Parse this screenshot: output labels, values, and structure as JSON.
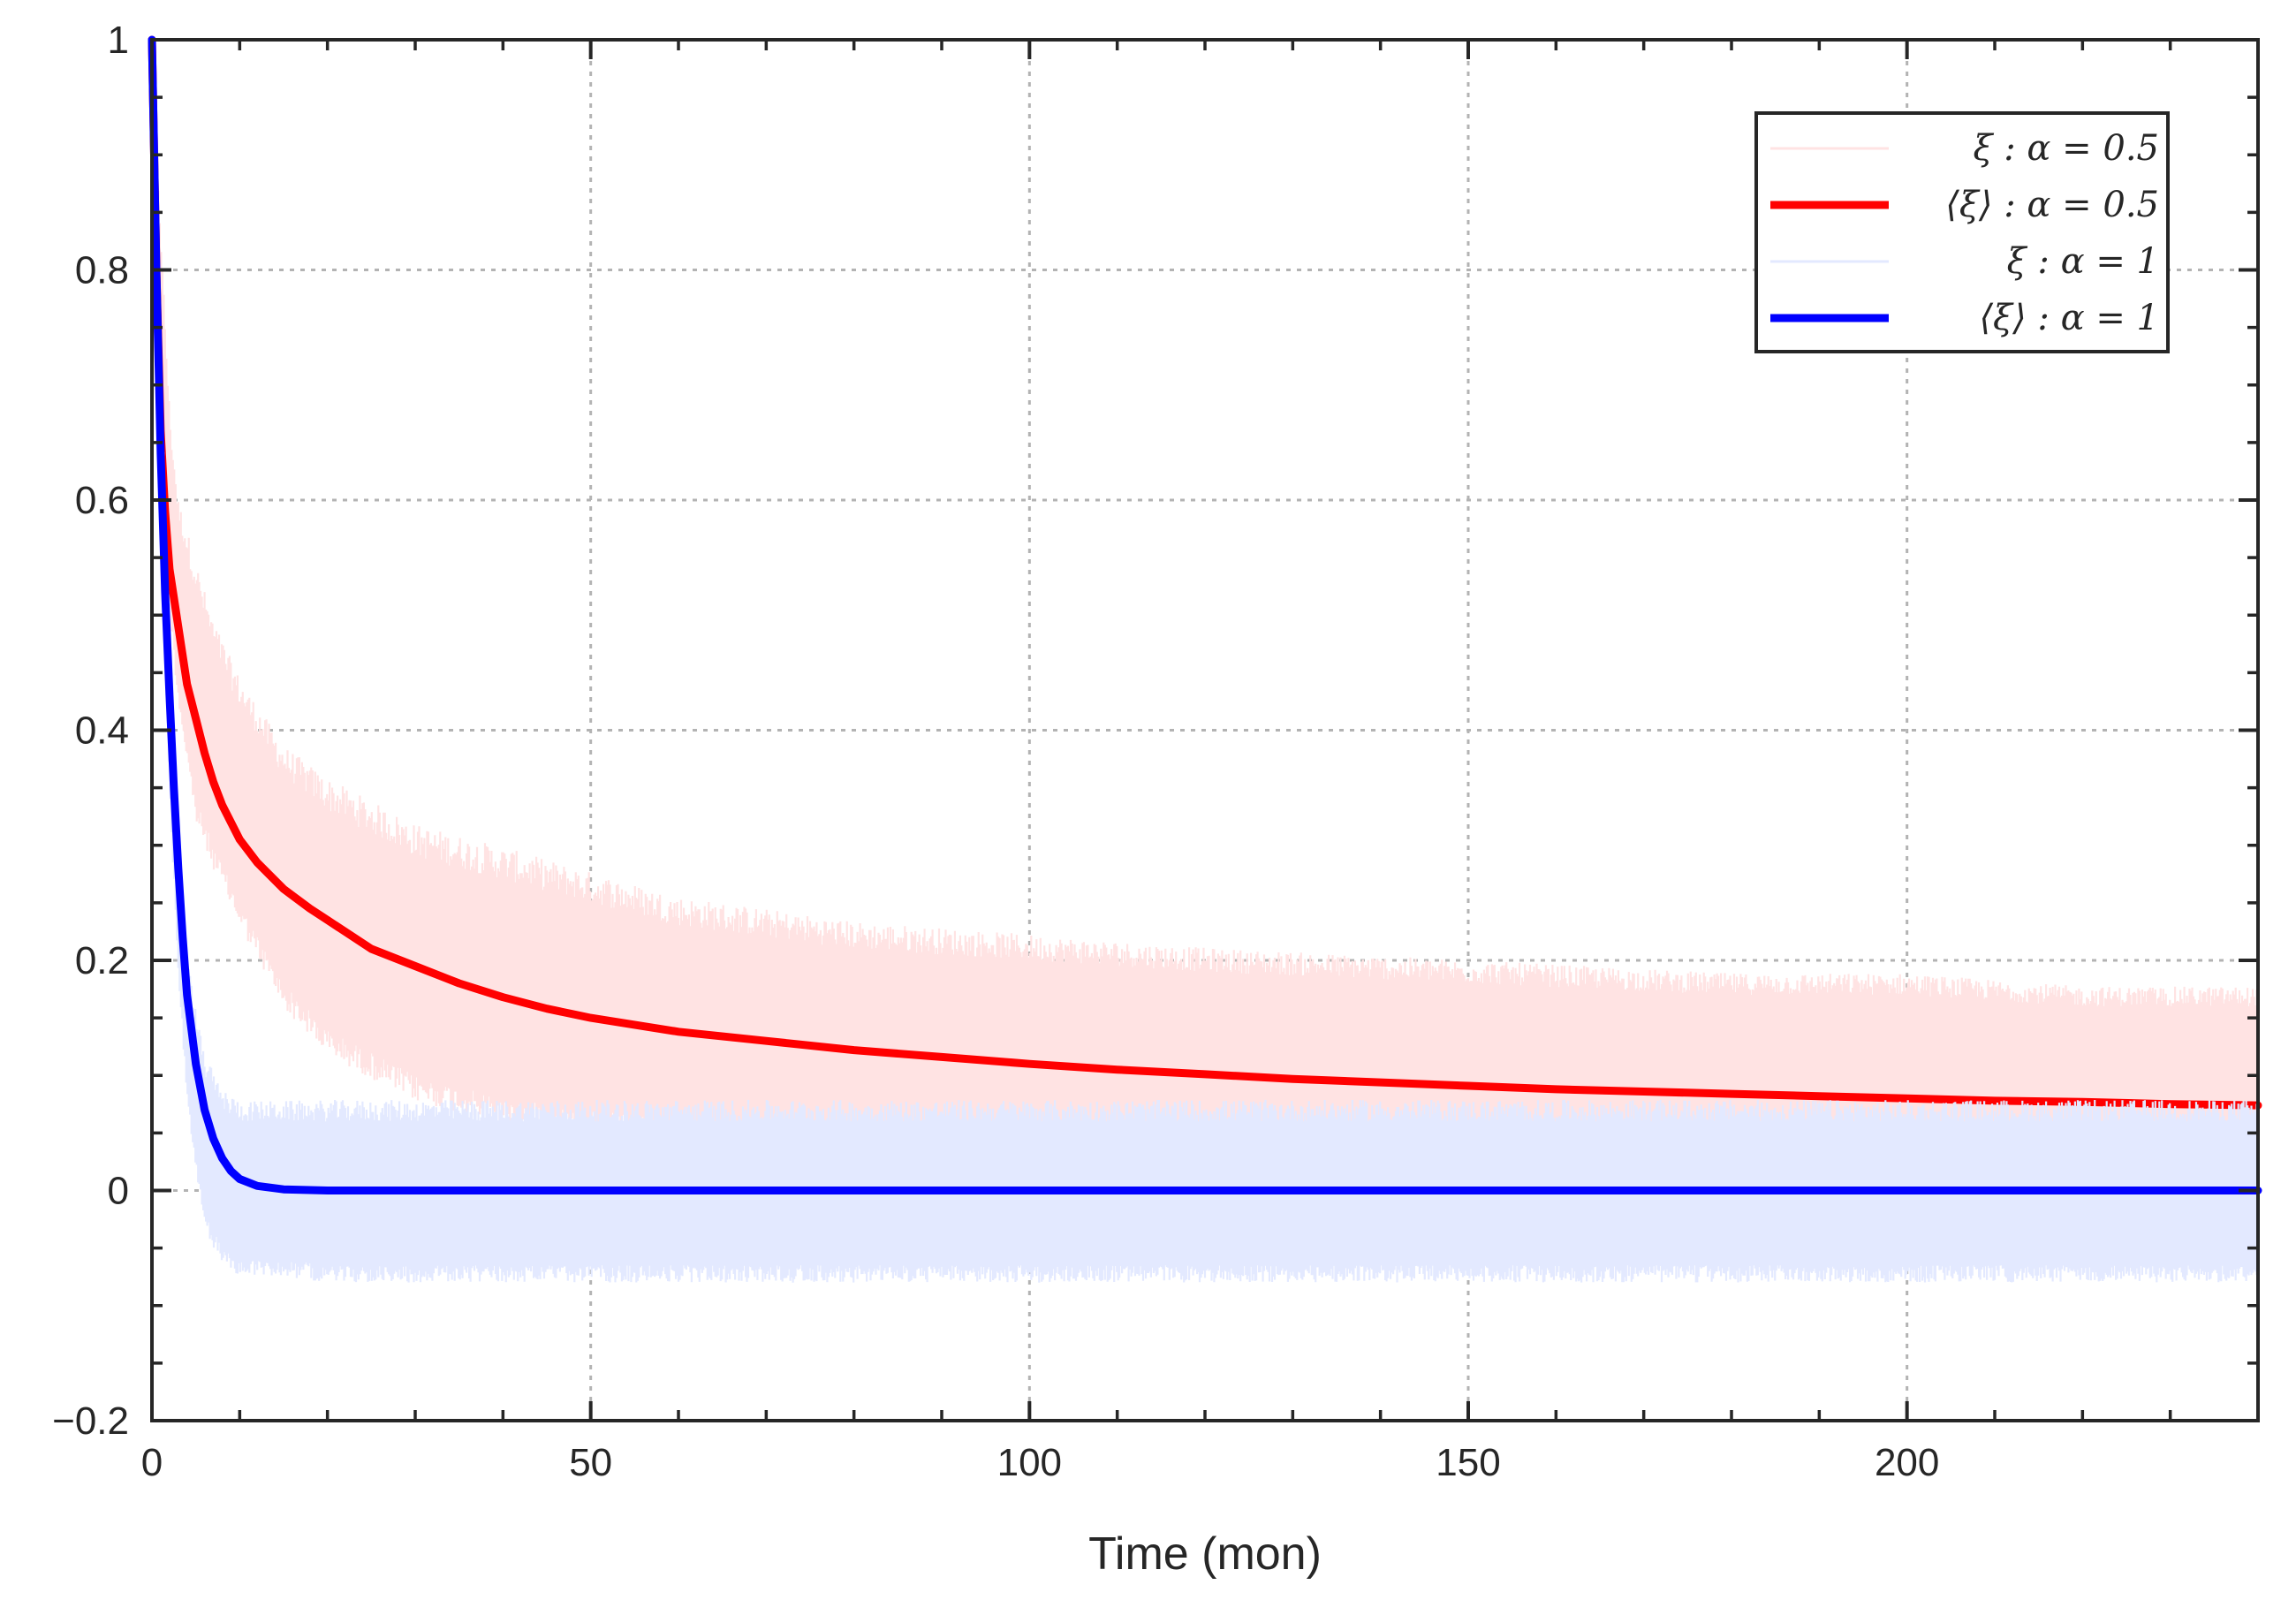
{
  "chart_data": {
    "type": "line",
    "title": "",
    "xlabel": "Time (mon)",
    "ylabel": "",
    "xlim": [
      0,
      240
    ],
    "ylim": [
      -0.2,
      1
    ],
    "xticks": [
      0,
      50,
      100,
      150,
      200
    ],
    "xtick_labels": [
      "0",
      "50",
      "100",
      "150",
      "200"
    ],
    "yticks": [
      -0.2,
      0,
      0.2,
      0.4,
      0.6,
      0.8,
      1
    ],
    "ytick_labels": [
      "−0.2",
      "0",
      "0.2",
      "0.4",
      "0.6",
      "0.8",
      "1"
    ],
    "grid": true,
    "legend_position": "top-right",
    "series": [
      {
        "name": "ξ : α = 0.5",
        "kind": "noisy-band",
        "color": "#ffe3e3",
        "x": [
          0,
          1,
          2,
          3,
          5,
          7,
          10,
          15,
          20,
          30,
          40,
          50,
          60,
          70,
          80,
          100,
          120,
          150,
          180,
          200,
          220,
          240
        ],
        "lower": [
          1.0,
          0.72,
          0.52,
          0.44,
          0.34,
          0.3,
          0.25,
          0.18,
          0.14,
          0.1,
          0.08,
          0.07,
          0.06,
          0.055,
          0.05,
          0.05,
          0.05,
          0.045,
          0.045,
          0.045,
          0.045,
          0.045
        ],
        "upper": [
          1.0,
          0.82,
          0.66,
          0.58,
          0.52,
          0.47,
          0.42,
          0.36,
          0.33,
          0.29,
          0.27,
          0.25,
          0.23,
          0.22,
          0.21,
          0.2,
          0.19,
          0.18,
          0.17,
          0.17,
          0.16,
          0.16
        ]
      },
      {
        "name": "⟨ξ⟩ : α = 0.5",
        "kind": "line",
        "color": "#ff0000",
        "x": [
          0,
          0.5,
          1,
          1.5,
          2,
          3,
          4,
          5,
          6,
          7,
          8,
          10,
          12,
          15,
          18,
          20,
          25,
          30,
          35,
          40,
          45,
          50,
          60,
          70,
          80,
          90,
          100,
          110,
          120,
          130,
          140,
          150,
          160,
          170,
          180,
          190,
          200,
          210,
          220,
          230,
          240
        ],
        "values": [
          1.0,
          0.8,
          0.66,
          0.59,
          0.54,
          0.49,
          0.44,
          0.41,
          0.38,
          0.355,
          0.335,
          0.305,
          0.285,
          0.262,
          0.245,
          0.235,
          0.21,
          0.195,
          0.18,
          0.168,
          0.158,
          0.15,
          0.138,
          0.13,
          0.122,
          0.116,
          0.11,
          0.105,
          0.101,
          0.097,
          0.094,
          0.091,
          0.088,
          0.086,
          0.084,
          0.082,
          0.08,
          0.078,
          0.077,
          0.075,
          0.074
        ]
      },
      {
        "name": "ξ : α = 1",
        "kind": "noisy-band",
        "color": "#e3e9ff",
        "x": [
          0,
          1,
          2,
          3,
          4,
          5,
          6,
          8,
          10,
          15,
          20,
          40,
          60,
          80,
          100,
          120,
          150,
          180,
          200,
          220,
          240
        ],
        "lower": [
          1.0,
          0.62,
          0.36,
          0.2,
          0.09,
          0.03,
          -0.02,
          -0.05,
          -0.06,
          -0.06,
          -0.065,
          -0.065,
          -0.065,
          -0.065,
          -0.065,
          -0.065,
          -0.065,
          -0.065,
          -0.065,
          -0.065,
          -0.065
        ],
        "upper": [
          1.0,
          0.72,
          0.46,
          0.29,
          0.19,
          0.14,
          0.1,
          0.07,
          0.06,
          0.06,
          0.06,
          0.06,
          0.06,
          0.06,
          0.06,
          0.06,
          0.06,
          0.06,
          0.06,
          0.06,
          0.06
        ]
      },
      {
        "name": "⟨ξ⟩ : α = 1",
        "kind": "line",
        "color": "#0000ff",
        "x": [
          0,
          0.5,
          1,
          1.5,
          2,
          2.5,
          3,
          3.5,
          4,
          4.5,
          5,
          6,
          7,
          8,
          9,
          10,
          12,
          15,
          20,
          30,
          240
        ],
        "values": [
          1.0,
          0.8,
          0.64,
          0.52,
          0.43,
          0.35,
          0.28,
          0.22,
          0.17,
          0.14,
          0.11,
          0.07,
          0.045,
          0.028,
          0.017,
          0.01,
          0.004,
          0.001,
          0.0,
          0.0,
          0.0
        ]
      }
    ]
  }
}
